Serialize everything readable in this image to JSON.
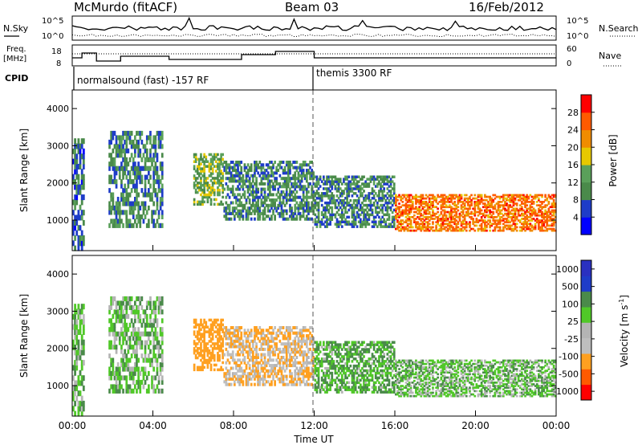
{
  "header": {
    "station": "McMurdo (fitACF)",
    "beam": "Beam 03",
    "date": "16/Feb/2012"
  },
  "nsky_panel": {
    "left_label": "N.Sky",
    "right_label": "N.Search",
    "left_ticks": [
      "10^5",
      "10^0"
    ],
    "right_ticks": [
      "10^5",
      "10^0"
    ]
  },
  "freq_panel": {
    "left_label_1": "Freq.",
    "left_label_2": "[MHz]",
    "right_label": "Nave",
    "left_ticks": [
      "18",
      "8"
    ],
    "right_ticks": [
      "60",
      "0"
    ]
  },
  "cpid": {
    "label": "CPID",
    "mode1": "normalsound (fast) -157 RF",
    "mode2": "themis 3300 RF"
  },
  "colors": {
    "power": [
      "#0000ff",
      "#1e3cc8",
      "#4a8a4a",
      "#5aa05a",
      "#e6c800",
      "#f08c00",
      "#ff5a00",
      "#ff0000"
    ],
    "velocity": [
      "#ff0000",
      "#ff5a00",
      "#ffa020",
      "#bebebe",
      "#b4b4b4",
      "#50c828",
      "#4a8a4a",
      "#1e3cc8",
      "#2a30c0"
    ]
  },
  "chart_data": [
    {
      "type": "heatmap",
      "title": "",
      "xlabel": "",
      "ylabel": "Slant Range [km]",
      "xlim": [
        "00:00",
        "00:00"
      ],
      "ylim": [
        180,
        4500
      ],
      "y_ticks": [
        "4000",
        "3000",
        "2000",
        "1000"
      ],
      "colorbar_label": "Power [dB]",
      "colorbar_ticks": [
        "28",
        "24",
        "20",
        "16",
        "12",
        "8",
        "4"
      ],
      "colorbar_range": [
        0,
        32
      ],
      "echo_regions": [
        {
          "t": [
            0.0,
            0.6
          ],
          "r": [
            180,
            3200
          ],
          "value": 8
        },
        {
          "t": [
            1.8,
            4.5
          ],
          "r": [
            800,
            3400
          ],
          "value": 10
        },
        {
          "t": [
            6.0,
            7.5
          ],
          "r": [
            1400,
            2800
          ],
          "value": 14
        },
        {
          "t": [
            7.5,
            12.0
          ],
          "r": [
            1000,
            2600
          ],
          "value": 10
        },
        {
          "t": [
            12.0,
            16.0
          ],
          "r": [
            800,
            2200
          ],
          "value": 10
        },
        {
          "t": [
            16.0,
            24.0
          ],
          "r": [
            700,
            1700
          ],
          "value": 24
        }
      ]
    },
    {
      "type": "heatmap",
      "title": "",
      "xlabel": "Time UT",
      "ylabel": "Slant Range [km]",
      "xlim": [
        "00:00",
        "00:00"
      ],
      "ylim": [
        180,
        4500
      ],
      "x_ticks": [
        "00:00",
        "04:00",
        "08:00",
        "12:00",
        "16:00",
        "20:00",
        "00:00"
      ],
      "y_ticks": [
        "4000",
        "3000",
        "2000",
        "1000"
      ],
      "colorbar_label": "Velocity [m s^-1]",
      "colorbar_ticks": [
        "1000",
        "500",
        "100",
        "25",
        "-25",
        "-100",
        "-500",
        "-1000"
      ],
      "colorbar_range": [
        -1200,
        1200
      ],
      "echo_regions": [
        {
          "t": [
            0.0,
            0.6
          ],
          "r": [
            180,
            3200
          ],
          "value": 60
        },
        {
          "t": [
            1.8,
            4.5
          ],
          "r": [
            800,
            3400
          ],
          "value": 60
        },
        {
          "t": [
            6.0,
            7.5
          ],
          "r": [
            1400,
            2800
          ],
          "value": -200
        },
        {
          "t": [
            7.5,
            12.0
          ],
          "r": [
            1000,
            2600
          ],
          "value": -100
        },
        {
          "t": [
            12.0,
            16.0
          ],
          "r": [
            800,
            2200
          ],
          "value": 100
        },
        {
          "t": [
            16.0,
            24.0
          ],
          "r": [
            700,
            1700
          ],
          "value": 60
        }
      ]
    }
  ]
}
